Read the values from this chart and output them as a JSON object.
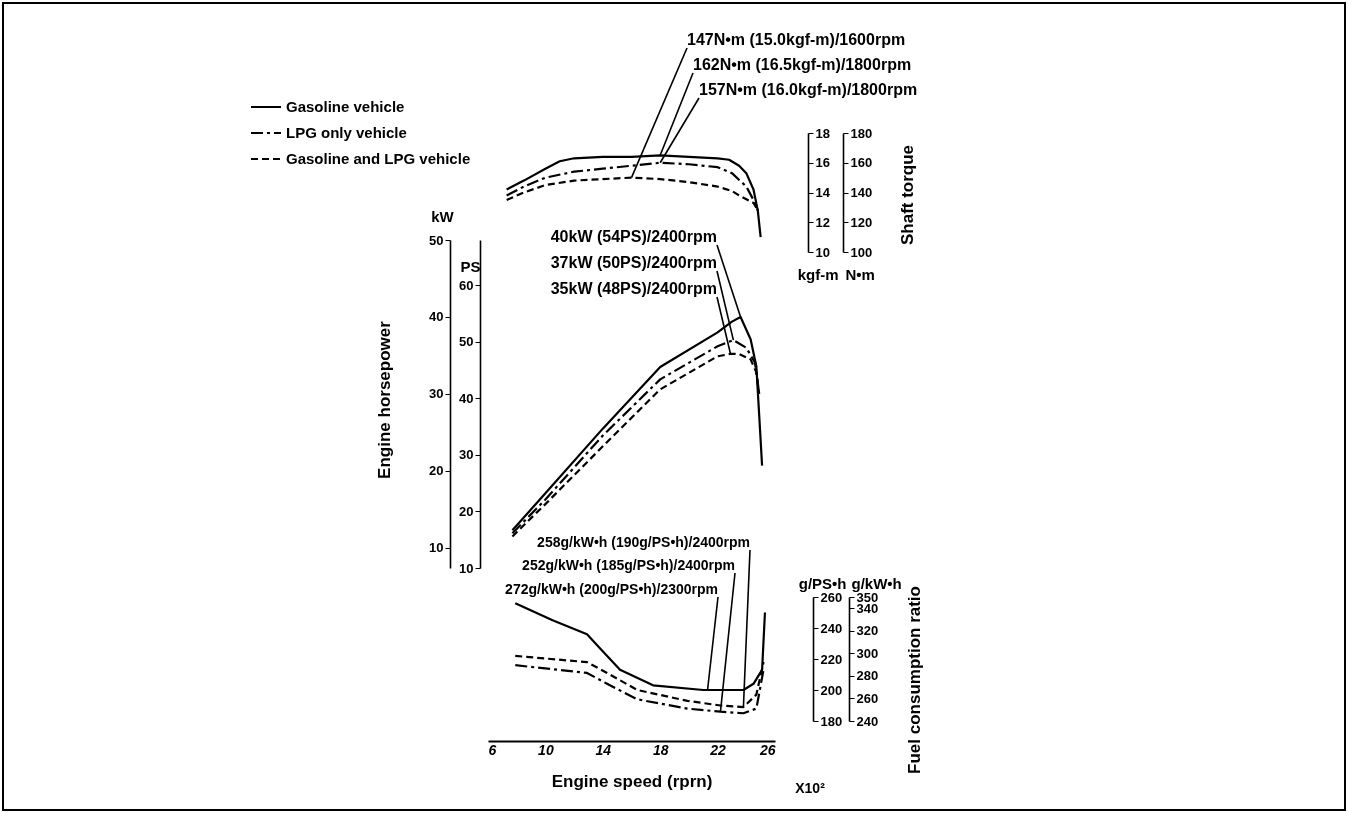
{
  "chart_data": [
    {
      "type": "line",
      "ylabel": "kgf-m",
      "y2label": "N•m",
      "xlim": [
        6,
        26
      ],
      "ylim": [
        10,
        18
      ],
      "yticks": [
        10,
        12,
        14,
        16,
        18
      ],
      "y2lim": [
        100,
        180
      ],
      "y2ticks": [
        100,
        120,
        140,
        160,
        180
      ],
      "tick_labels": "y",
      "legend": "top left",
      "series": [
        {
          "name": "Gasoline vehicle",
          "color": "#000000",
          "line_style": "solid",
          "x": [
            7.3,
            8.5,
            10,
            11,
            12,
            14,
            16,
            18,
            20,
            22,
            22.8,
            23.5,
            24,
            24.5,
            24.8,
            25
          ],
          "values": [
            14.2,
            14.8,
            15.6,
            16.1,
            16.3,
            16.4,
            16.4,
            16.5,
            16.4,
            16.3,
            16.2,
            15.8,
            15.3,
            14.2,
            12.8,
            11.0
          ]
        },
        {
          "name": "LPG only vehicle",
          "color": "#000000",
          "line_style": "dashdot",
          "x": [
            7.3,
            8.5,
            10,
            12,
            14,
            16,
            18,
            20,
            22,
            23,
            24,
            24.5,
            24.8
          ],
          "values": [
            13.8,
            14.4,
            15.0,
            15.4,
            15.6,
            15.8,
            16.0,
            15.9,
            15.7,
            15.3,
            14.4,
            13.5,
            12.8
          ]
        },
        {
          "name": "Gasoline and LPG vehicle",
          "color": "#000000",
          "line_style": "dashed",
          "x": [
            7.3,
            8.5,
            10,
            12,
            14,
            16,
            18,
            20,
            22,
            23,
            23.5,
            24.5,
            24.8
          ],
          "values": [
            13.5,
            14.0,
            14.5,
            14.8,
            14.9,
            15.0,
            14.9,
            14.7,
            14.4,
            14.1,
            13.8,
            13.3,
            12.8
          ]
        }
      ],
      "annotations": [
        "Shaft torque",
        {
          "text": "147N•m (15.0kgf-m)/1600rpm",
          "x": 16,
          "y": 15.0
        },
        {
          "text": "162N•m (16.5kgf-m)/1800rpm",
          "x": 18,
          "y": 16.5
        },
        {
          "text": "157N•m (16.0kgf-m)/1800rpm",
          "x": 18,
          "y": 16.0
        }
      ]
    },
    {
      "type": "line",
      "ylabel": "kW",
      "y2label": "PS",
      "xlim": [
        6,
        26
      ],
      "ylim": [
        7.4,
        50
      ],
      "yticks": [
        10,
        20,
        30,
        40,
        50
      ],
      "y2lim": [
        10,
        68
      ],
      "y2ticks": [
        10,
        20,
        30,
        40,
        50,
        60
      ],
      "tick_labels": "y",
      "series": [
        {
          "color": "#000000",
          "line_style": "solid",
          "x": [
            7.7,
            10,
            14,
            18,
            22,
            23,
            23.6,
            24.3,
            24.7,
            24.9,
            25.1
          ],
          "values": [
            12.3,
            17.1,
            25.5,
            33.5,
            38.0,
            39.4,
            40,
            37.1,
            33.6,
            27.2,
            20.7
          ]
        },
        {
          "color": "#000000",
          "line_style": "dashdot",
          "x": [
            7.7,
            10,
            14,
            18,
            22,
            23.1,
            24,
            24.6,
            24.9
          ],
          "values": [
            11.9,
            16.3,
            24.6,
            31.9,
            36.2,
            37,
            36,
            34.1,
            30
          ]
        },
        {
          "color": "#000000",
          "line_style": "dashed",
          "x": [
            7.7,
            10,
            14,
            18,
            22,
            22.9,
            23.5,
            24.3,
            24.7,
            24.9
          ],
          "values": [
            11.5,
            15.7,
            23.2,
            30.6,
            34.9,
            35.2,
            35.2,
            34.5,
            32.8,
            30
          ]
        }
      ],
      "annotations": [
        "Engine horsepower",
        {
          "text": "40kW (54PS)/2400rpm",
          "x": 23.6,
          "y": 40
        },
        {
          "text": "37kW (50PS)/2400rpm",
          "x": 23.1,
          "y": 37
        },
        {
          "text": "35kW (48PS)/2400rpm",
          "x": 22.9,
          "y": 35.2
        }
      ]
    },
    {
      "type": "line",
      "xlabel": "Engine speed (rprn)",
      "ylabel": "g/PS•h",
      "y2label": "g/kW•h",
      "xlim": [
        6,
        26
      ],
      "xticks": [
        6,
        10,
        14,
        18,
        22,
        26
      ],
      "ylim": [
        180,
        260
      ],
      "yticks": [
        180,
        200,
        220,
        240,
        260
      ],
      "y2lim": [
        240,
        350
      ],
      "y2ticks": [
        240,
        260,
        280,
        300,
        320,
        340,
        350
      ],
      "series": [
        {
          "color": "#000000",
          "line_style": "solid",
          "x": [
            7.9,
            10.5,
            12.9,
            13.8,
            15.2,
            17.5,
            21,
            23.8,
            24.5,
            25.1,
            25.3
          ],
          "values": [
            256,
            245,
            236,
            227,
            213,
            203,
            200,
            200,
            204,
            213,
            250
          ]
        },
        {
          "color": "#000000",
          "line_style": "dashdot",
          "x": [
            7.9,
            12.9,
            14.3,
            16.4,
            19.9,
            22.2,
            23.8,
            24.7,
            25.2
          ],
          "values": [
            216,
            211,
            204,
            194,
            188,
            186,
            185,
            188,
            213
          ]
        },
        {
          "color": "#000000",
          "line_style": "dashed",
          "x": [
            7.9,
            12.9,
            14.3,
            16.4,
            19.9,
            22.2,
            23.8,
            24.7,
            25.2
          ],
          "values": [
            222,
            218,
            211,
            200,
            193,
            190,
            189,
            197,
            218
          ]
        }
      ],
      "annotations": [
        "Fuel consumption ratio",
        "X10²",
        {
          "text": "258g/kW•h (190g/PS•h)/2400rpm",
          "x": 23.8,
          "y": 189
        },
        {
          "text": "252g/kW•h (185g/PS•h)/2400rpm",
          "x": 22.2,
          "y": 186
        },
        {
          "text": "272g/kW•h (200g/PS•h)/2300rpm",
          "x": 21.3,
          "y": 200
        }
      ]
    }
  ]
}
